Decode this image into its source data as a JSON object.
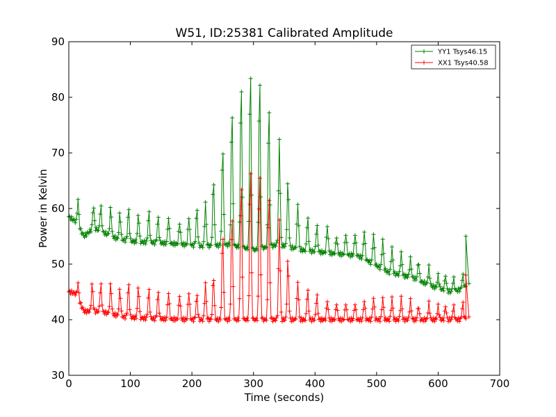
{
  "chart_data": {
    "type": "line",
    "title": "W51, ID:25381 Calibrated Amplitude",
    "xlabel": "Time (seconds)",
    "ylabel": "Power in Kelvin",
    "xlim": [
      0,
      700
    ],
    "ylim": [
      30,
      90
    ],
    "xticks": [
      0,
      100,
      200,
      300,
      400,
      500,
      600,
      700
    ],
    "yticks": [
      30,
      40,
      50,
      60,
      70,
      80,
      90
    ],
    "grid": false,
    "legend_position": "top-right",
    "series": [
      {
        "name": "YY1 Tsys46.15",
        "color": "#008000",
        "baseline": [
          [
            0,
            58.5
          ],
          [
            10,
            57.8
          ],
          [
            25,
            55
          ],
          [
            40,
            56.5
          ],
          [
            80,
            54.5
          ],
          [
            110,
            54
          ],
          [
            150,
            53.8
          ],
          [
            190,
            53.5
          ],
          [
            220,
            53.2
          ],
          [
            260,
            53.5
          ],
          [
            300,
            52.5
          ],
          [
            340,
            53.5
          ],
          [
            380,
            52.5
          ],
          [
            420,
            52
          ],
          [
            470,
            51.5
          ],
          [
            520,
            48.5
          ],
          [
            560,
            47.5
          ],
          [
            590,
            46
          ],
          [
            620,
            45
          ],
          [
            640,
            45.5
          ],
          [
            645,
            46
          ]
        ],
        "peaks": [
          [
            15,
            61.5
          ],
          [
            40,
            60.5
          ],
          [
            52,
            60.5
          ],
          [
            68,
            60.2
          ],
          [
            83,
            59.2
          ],
          [
            97,
            60
          ],
          [
            113,
            59
          ],
          [
            130,
            59.5
          ],
          [
            145,
            58.5
          ],
          [
            162,
            58.5
          ],
          [
            180,
            57.5
          ],
          [
            195,
            58.5
          ],
          [
            208,
            60
          ],
          [
            222,
            61
          ],
          [
            235,
            65.5
          ],
          [
            250,
            71.5
          ],
          [
            265,
            78.5
          ],
          [
            280,
            83.5
          ],
          [
            295,
            86
          ],
          [
            310,
            84.5
          ],
          [
            325,
            79
          ],
          [
            342,
            72.5
          ],
          [
            356,
            65
          ],
          [
            372,
            61
          ],
          [
            388,
            58.5
          ],
          [
            403,
            57
          ],
          [
            420,
            57
          ],
          [
            435,
            55
          ],
          [
            450,
            55.5
          ],
          [
            465,
            55.5
          ],
          [
            480,
            56
          ],
          [
            495,
            55.5
          ],
          [
            510,
            54.5
          ],
          [
            525,
            53
          ],
          [
            540,
            52
          ],
          [
            555,
            51
          ],
          [
            568,
            50.5
          ],
          [
            585,
            49.5
          ],
          [
            600,
            48
          ],
          [
            612,
            48
          ],
          [
            625,
            47.5
          ],
          [
            640,
            48
          ]
        ],
        "end": [
          [
            645,
            55
          ],
          [
            650,
            46.5
          ]
        ]
      },
      {
        "name": "XX1 Tsys40.58",
        "color": "#ff0000",
        "baseline": [
          [
            0,
            45
          ],
          [
            10,
            44.8
          ],
          [
            25,
            41.5
          ],
          [
            50,
            41.5
          ],
          [
            90,
            40.5
          ],
          [
            130,
            40.2
          ],
          [
            200,
            40
          ],
          [
            300,
            40
          ],
          [
            400,
            40
          ],
          [
            500,
            40
          ],
          [
            600,
            40
          ],
          [
            640,
            40
          ],
          [
            645,
            40.2
          ]
        ],
        "peaks": [
          [
            15,
            46.5
          ],
          [
            38,
            46.5
          ],
          [
            52,
            46.5
          ],
          [
            68,
            46.5
          ],
          [
            83,
            45.5
          ],
          [
            97,
            46.5
          ],
          [
            113,
            46
          ],
          [
            130,
            45.5
          ],
          [
            145,
            45
          ],
          [
            162,
            45
          ],
          [
            180,
            44.5
          ],
          [
            195,
            45
          ],
          [
            208,
            44.5
          ],
          [
            222,
            46.5
          ],
          [
            235,
            48
          ],
          [
            250,
            56
          ],
          [
            265,
            59.5
          ],
          [
            280,
            65.5
          ],
          [
            295,
            68.5
          ],
          [
            310,
            67.5
          ],
          [
            325,
            63
          ],
          [
            342,
            58
          ],
          [
            356,
            51
          ],
          [
            372,
            47
          ],
          [
            388,
            45.5
          ],
          [
            403,
            44.5
          ],
          [
            420,
            43.5
          ],
          [
            435,
            43
          ],
          [
            450,
            43
          ],
          [
            465,
            43
          ],
          [
            480,
            43.5
          ],
          [
            495,
            44
          ],
          [
            510,
            44
          ],
          [
            525,
            44
          ],
          [
            540,
            44
          ],
          [
            555,
            43.5
          ],
          [
            568,
            42.5
          ],
          [
            585,
            43
          ],
          [
            600,
            42.5
          ],
          [
            612,
            42.5
          ],
          [
            625,
            42.5
          ],
          [
            640,
            43
          ]
        ],
        "end": [
          [
            645,
            48
          ],
          [
            650,
            40.5
          ]
        ]
      }
    ]
  }
}
